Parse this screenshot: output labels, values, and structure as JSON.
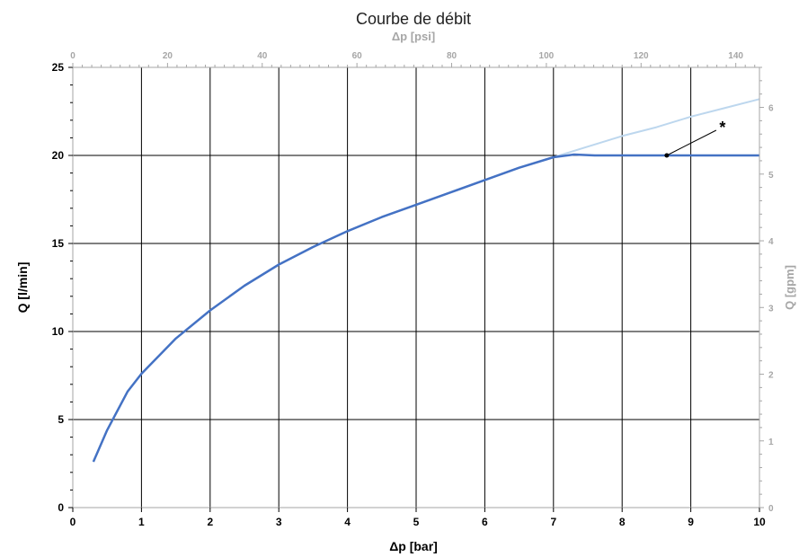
{
  "chart_data": {
    "type": "line",
    "title": "Courbe de débit",
    "xlabel": "Δp [bar]",
    "ylabel": "Q [l/min]",
    "x2label": "Δp [psi]",
    "y2label": "Q [gpm]",
    "xlim": [
      0,
      10
    ],
    "ylim": [
      0,
      25
    ],
    "x2lim": [
      0,
      145
    ],
    "y2lim": [
      0,
      6.6
    ],
    "xticks": [
      0,
      1,
      2,
      3,
      4,
      5,
      6,
      7,
      8,
      9,
      10
    ],
    "yticks": [
      0,
      5,
      10,
      15,
      20,
      25
    ],
    "x2ticks": [
      0,
      20,
      40,
      60,
      80,
      100,
      120,
      140
    ],
    "y2ticks": [
      0,
      1,
      2,
      3,
      4,
      5,
      6
    ],
    "grid": true,
    "series": [
      {
        "color": "#bdd7ee",
        "x": [
          0.3,
          0.5,
          0.8,
          1.0,
          1.5,
          2.0,
          2.5,
          3.0,
          3.5,
          4.0,
          4.5,
          5.0,
          5.5,
          6.0,
          6.5,
          7.0,
          7.5,
          8.0,
          8.5,
          9.0,
          9.5,
          10.0
        ],
        "y": [
          2.6,
          4.4,
          6.6,
          7.6,
          9.6,
          11.2,
          12.6,
          13.8,
          14.8,
          15.7,
          16.5,
          17.2,
          17.9,
          18.6,
          19.3,
          19.9,
          20.5,
          21.1,
          21.6,
          22.2,
          22.7,
          23.2
        ]
      },
      {
        "color": "#4472c4",
        "x": [
          0.3,
          0.5,
          0.8,
          1.0,
          1.5,
          2.0,
          2.5,
          3.0,
          3.5,
          4.0,
          4.5,
          5.0,
          5.5,
          6.0,
          6.5,
          7.0,
          7.3,
          7.6,
          8.0,
          9.0,
          10.0
        ],
        "y": [
          2.6,
          4.4,
          6.6,
          7.6,
          9.6,
          11.2,
          12.6,
          13.8,
          14.8,
          15.7,
          16.5,
          17.2,
          17.9,
          18.6,
          19.3,
          19.9,
          20.05,
          20.0,
          20.0,
          20.0,
          20.0
        ]
      }
    ],
    "annotations": [
      {
        "text": "*",
        "x": 8.65,
        "y": 20.0
      }
    ]
  }
}
